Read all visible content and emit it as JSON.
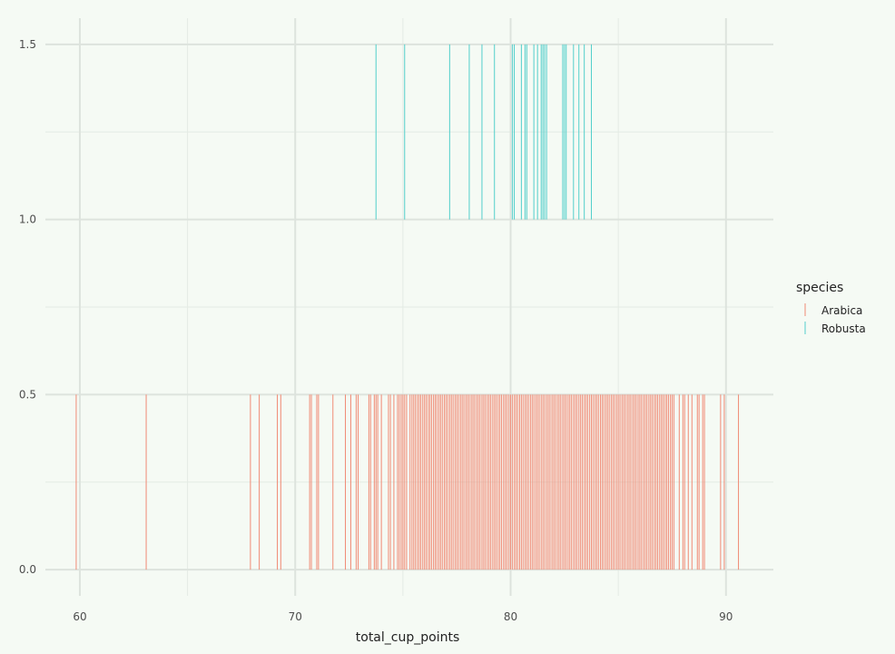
{
  "chart_data": {
    "type": "rug",
    "xlabel": "total_cup_points",
    "ylabel": "",
    "xlim": [
      58.4,
      92.2
    ],
    "ylim": [
      -0.075,
      1.575
    ],
    "x_ticks": [
      60,
      70,
      80,
      90
    ],
    "x_tick_labels": [
      "60",
      "70",
      "80",
      "90"
    ],
    "y_ticks": [
      0.0,
      0.5,
      1.0,
      1.5
    ],
    "y_tick_labels": [
      "0.0",
      "0.5",
      "1.0",
      "1.5"
    ],
    "grid": true,
    "legend": {
      "title": "species",
      "position": "right"
    },
    "series": [
      {
        "name": "Arabica",
        "color": "#f08a75",
        "y_range": [
          0,
          0.5
        ],
        "x": [
          59.83,
          63.08,
          67.92,
          68.33,
          69.17,
          69.33,
          70.67,
          70.75,
          71.0,
          71.08,
          71.75,
          72.33,
          72.58,
          72.83,
          72.92,
          73.42,
          73.5,
          73.67,
          73.75,
          73.83,
          74.0,
          74.33,
          74.42,
          74.58,
          74.75,
          74.83,
          74.92,
          75.0,
          75.08,
          75.17,
          75.33,
          75.42,
          75.5,
          75.58,
          75.67,
          75.75,
          75.83,
          75.92,
          76.0,
          76.08,
          76.17,
          76.25,
          76.33,
          76.42,
          76.5,
          76.58,
          76.67,
          76.75,
          76.83,
          76.92,
          77.0,
          77.08,
          77.17,
          77.25,
          77.33,
          77.42,
          77.5,
          77.58,
          77.67,
          77.75,
          77.83,
          77.92,
          78.0,
          78.08,
          78.17,
          78.25,
          78.33,
          78.42,
          78.5,
          78.58,
          78.67,
          78.75,
          78.83,
          78.92,
          79.0,
          79.08,
          79.17,
          79.25,
          79.33,
          79.42,
          79.5,
          79.58,
          79.67,
          79.75,
          79.83,
          79.92,
          80.0,
          80.08,
          80.17,
          80.25,
          80.33,
          80.42,
          80.5,
          80.58,
          80.67,
          80.75,
          80.83,
          80.92,
          81.0,
          81.08,
          81.17,
          81.25,
          81.33,
          81.42,
          81.5,
          81.58,
          81.67,
          81.75,
          81.83,
          81.92,
          82.0,
          82.08,
          82.17,
          82.25,
          82.33,
          82.42,
          82.5,
          82.58,
          82.67,
          82.75,
          82.83,
          82.92,
          83.0,
          83.08,
          83.17,
          83.25,
          83.33,
          83.42,
          83.5,
          83.58,
          83.67,
          83.75,
          83.83,
          83.92,
          84.0,
          84.08,
          84.17,
          84.25,
          84.33,
          84.42,
          84.5,
          84.58,
          84.67,
          84.75,
          84.83,
          84.92,
          85.0,
          85.08,
          85.17,
          85.25,
          85.33,
          85.42,
          85.5,
          85.58,
          85.67,
          85.75,
          85.83,
          85.92,
          86.0,
          86.08,
          86.17,
          86.25,
          86.33,
          86.42,
          86.5,
          86.58,
          86.67,
          86.75,
          86.83,
          86.92,
          87.0,
          87.08,
          87.17,
          87.25,
          87.33,
          87.42,
          87.5,
          87.58,
          87.83,
          88.0,
          88.08,
          88.25,
          88.42,
          88.67,
          88.75,
          88.92,
          89.0,
          89.75,
          89.92,
          90.58
        ]
      },
      {
        "name": "Robusta",
        "color": "#52cfcb",
        "y_range": [
          1,
          1.5
        ],
        "x": [
          73.75,
          75.08,
          77.17,
          78.08,
          78.67,
          79.25,
          80.08,
          80.17,
          80.5,
          80.67,
          80.75,
          81.08,
          81.25,
          81.42,
          81.5,
          81.58,
          81.67,
          82.42,
          82.5,
          82.58,
          82.92,
          83.17,
          83.42,
          83.75
        ]
      }
    ]
  }
}
